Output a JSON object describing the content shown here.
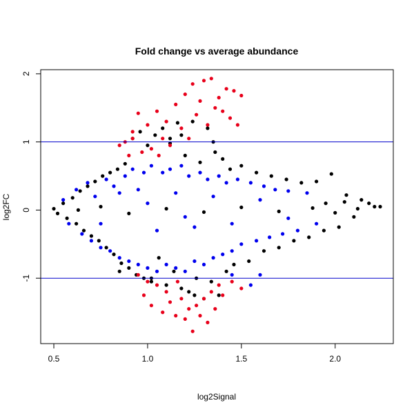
{
  "chart_data": {
    "type": "scatter",
    "title": "Fold change vs average abundance",
    "xlabel": "log2Signal",
    "ylabel": "log2FC",
    "xlim": [
      0.43,
      2.31
    ],
    "ylim": [
      -1.96,
      2.06
    ],
    "x_ticks": [
      0.5,
      1.0,
      1.5,
      2.0
    ],
    "x_tick_labels": [
      "0.5",
      "1.0",
      "1.5",
      "2.0"
    ],
    "y_ticks": [
      -1,
      0,
      1,
      2
    ],
    "y_tick_labels": [
      "-1",
      "0",
      "1",
      "2"
    ],
    "grid": false,
    "reference_lines": [
      {
        "y": 1,
        "color": "#0000cc"
      },
      {
        "y": -1,
        "color": "#0000cc"
      }
    ],
    "series": [
      {
        "color": "#000000",
        "points": [
          [
            0.5,
            0.02
          ],
          [
            0.52,
            -0.05
          ],
          [
            0.55,
            0.1
          ],
          [
            0.57,
            -0.12
          ],
          [
            0.6,
            0.18
          ],
          [
            0.62,
            -0.2
          ],
          [
            0.64,
            0.28
          ],
          [
            0.66,
            -0.3
          ],
          [
            0.68,
            0.35
          ],
          [
            0.7,
            -0.38
          ],
          [
            0.72,
            0.42
          ],
          [
            0.74,
            -0.45
          ],
          [
            0.76,
            0.5
          ],
          [
            0.78,
            -0.55
          ],
          [
            0.8,
            0.55
          ],
          [
            0.82,
            -0.65
          ],
          [
            0.84,
            0.6
          ],
          [
            0.86,
            -0.78
          ],
          [
            0.88,
            0.68
          ],
          [
            0.9,
            -0.85
          ],
          [
            0.92,
            1.05
          ],
          [
            0.94,
            -0.95
          ],
          [
            0.96,
            1.15
          ],
          [
            0.98,
            -1.0
          ],
          [
            1.0,
            0.95
          ],
          [
            1.02,
            -1.05
          ],
          [
            1.04,
            1.1
          ],
          [
            1.06,
            -0.7
          ],
          [
            1.08,
            1.2
          ],
          [
            1.1,
            -1.1
          ],
          [
            1.12,
            1.05
          ],
          [
            1.14,
            -0.9
          ],
          [
            1.16,
            1.28
          ],
          [
            1.18,
            -1.15
          ],
          [
            1.2,
            0.8
          ],
          [
            1.22,
            -1.2
          ],
          [
            1.24,
            1.3
          ],
          [
            1.26,
            -1.0
          ],
          [
            1.28,
            0.7
          ],
          [
            1.3,
            -1.3
          ],
          [
            1.32,
            1.2
          ],
          [
            1.34,
            -1.05
          ],
          [
            1.36,
            0.85
          ],
          [
            1.38,
            -1.25
          ],
          [
            1.4,
            0.75
          ],
          [
            1.42,
            -0.9
          ],
          [
            1.44,
            0.6
          ],
          [
            1.46,
            -0.8
          ],
          [
            1.5,
            0.65
          ],
          [
            1.54,
            -0.75
          ],
          [
            1.58,
            0.55
          ],
          [
            1.62,
            -0.6
          ],
          [
            1.66,
            0.5
          ],
          [
            1.7,
            -0.55
          ],
          [
            1.74,
            0.45
          ],
          [
            1.78,
            -0.45
          ],
          [
            1.82,
            0.4
          ],
          [
            1.86,
            -0.4
          ],
          [
            1.9,
            0.42
          ],
          [
            1.94,
            -0.3
          ],
          [
            1.98,
            0.53
          ],
          [
            2.02,
            -0.25
          ],
          [
            2.06,
            0.22
          ],
          [
            2.1,
            -0.1
          ],
          [
            2.14,
            0.15
          ],
          [
            2.18,
            0.1
          ],
          [
            2.21,
            0.05
          ],
          [
            2.24,
            0.05
          ],
          [
            2.05,
            0.12
          ],
          [
            1.95,
            0.1
          ],
          [
            0.63,
            0.0
          ],
          [
            0.75,
            0.05
          ],
          [
            0.9,
            -0.05
          ],
          [
            1.1,
            0.02
          ],
          [
            1.3,
            -0.03
          ],
          [
            1.5,
            0.04
          ],
          [
            1.7,
            -0.02
          ],
          [
            1.88,
            0.03
          ],
          [
            2.0,
            -0.04
          ],
          [
            2.12,
            0.02
          ],
          [
            1.18,
            1.1
          ],
          [
            1.12,
            0.98
          ],
          [
            1.02,
            -1.0
          ],
          [
            0.85,
            -0.9
          ],
          [
            1.25,
            -1.25
          ],
          [
            1.35,
            1.0
          ]
        ]
      },
      {
        "color": "#0000ee",
        "points": [
          [
            0.55,
            0.15
          ],
          [
            0.58,
            -0.2
          ],
          [
            0.62,
            0.3
          ],
          [
            0.65,
            -0.35
          ],
          [
            0.68,
            0.4
          ],
          [
            0.7,
            -0.45
          ],
          [
            0.72,
            0.2
          ],
          [
            0.75,
            -0.55
          ],
          [
            0.78,
            0.45
          ],
          [
            0.8,
            -0.6
          ],
          [
            0.82,
            0.35
          ],
          [
            0.85,
            -0.7
          ],
          [
            0.88,
            0.5
          ],
          [
            0.9,
            -0.75
          ],
          [
            0.92,
            0.6
          ],
          [
            0.95,
            -0.8
          ],
          [
            0.98,
            0.55
          ],
          [
            1.0,
            -0.85
          ],
          [
            1.02,
            0.65
          ],
          [
            1.05,
            -0.9
          ],
          [
            1.08,
            0.55
          ],
          [
            1.1,
            -0.8
          ],
          [
            1.12,
            0.6
          ],
          [
            1.15,
            -0.85
          ],
          [
            1.18,
            0.65
          ],
          [
            1.2,
            -0.9
          ],
          [
            1.22,
            0.5
          ],
          [
            1.25,
            -0.75
          ],
          [
            1.28,
            0.55
          ],
          [
            1.3,
            -0.8
          ],
          [
            1.32,
            0.45
          ],
          [
            1.35,
            -0.7
          ],
          [
            1.38,
            0.5
          ],
          [
            1.4,
            -0.65
          ],
          [
            1.42,
            0.4
          ],
          [
            1.45,
            -0.6
          ],
          [
            1.48,
            0.45
          ],
          [
            1.5,
            -0.5
          ],
          [
            1.55,
            0.4
          ],
          [
            1.58,
            -0.45
          ],
          [
            1.62,
            0.35
          ],
          [
            1.65,
            -0.4
          ],
          [
            1.68,
            0.3
          ],
          [
            1.72,
            -0.35
          ],
          [
            1.75,
            0.28
          ],
          [
            1.8,
            -0.3
          ],
          [
            1.85,
            0.25
          ],
          [
            1.9,
            -0.2
          ],
          [
            1.55,
            -1.1
          ],
          [
            1.45,
            -0.95
          ],
          [
            1.6,
            -0.95
          ],
          [
            0.95,
            0.3
          ],
          [
            1.05,
            -0.3
          ],
          [
            1.15,
            0.25
          ],
          [
            1.25,
            -0.25
          ],
          [
            1.35,
            0.2
          ],
          [
            1.45,
            -0.2
          ],
          [
            1.6,
            0.15
          ],
          [
            1.75,
            -0.12
          ],
          [
            0.85,
            0.25
          ],
          [
            0.75,
            -0.2
          ],
          [
            1.0,
            0.1
          ],
          [
            1.2,
            -0.1
          ]
        ]
      },
      {
        "color": "#e8001a",
        "points": [
          [
            0.85,
            0.95
          ],
          [
            0.88,
            1.0
          ],
          [
            0.9,
            0.8
          ],
          [
            0.92,
            1.15
          ],
          [
            0.95,
            1.42
          ],
          [
            0.97,
            0.85
          ],
          [
            1.0,
            1.25
          ],
          [
            1.02,
            0.9
          ],
          [
            1.05,
            1.45
          ],
          [
            1.08,
            1.05
          ],
          [
            1.1,
            1.3
          ],
          [
            1.12,
            0.95
          ],
          [
            1.15,
            1.55
          ],
          [
            1.18,
            1.2
          ],
          [
            1.2,
            1.7
          ],
          [
            1.22,
            1.05
          ],
          [
            1.24,
            1.85
          ],
          [
            1.26,
            1.4
          ],
          [
            1.28,
            1.6
          ],
          [
            1.3,
            1.9
          ],
          [
            1.32,
            1.25
          ],
          [
            1.34,
            1.93
          ],
          [
            1.36,
            1.5
          ],
          [
            1.38,
            1.65
          ],
          [
            1.4,
            1.45
          ],
          [
            1.42,
            1.78
          ],
          [
            1.44,
            1.35
          ],
          [
            1.46,
            1.75
          ],
          [
            1.48,
            1.25
          ],
          [
            1.5,
            1.68
          ],
          [
            0.95,
            -0.95
          ],
          [
            0.98,
            -1.25
          ],
          [
            1.0,
            -1.05
          ],
          [
            1.02,
            -1.4
          ],
          [
            1.05,
            -1.1
          ],
          [
            1.08,
            -1.5
          ],
          [
            1.1,
            -1.2
          ],
          [
            1.12,
            -1.35
          ],
          [
            1.15,
            -1.55
          ],
          [
            1.18,
            -1.3
          ],
          [
            1.2,
            -1.6
          ],
          [
            1.22,
            -1.45
          ],
          [
            1.24,
            -1.78
          ],
          [
            1.26,
            -1.4
          ],
          [
            1.28,
            -1.55
          ],
          [
            1.3,
            -1.3
          ],
          [
            1.32,
            -1.65
          ],
          [
            1.34,
            -1.2
          ],
          [
            1.36,
            -1.45
          ],
          [
            1.38,
            -1.1
          ],
          [
            1.4,
            -1.25
          ],
          [
            1.45,
            -1.05
          ],
          [
            1.5,
            -1.15
          ],
          [
            0.92,
            1.05
          ],
          [
            1.06,
            0.8
          ],
          [
            1.16,
            -1.05
          ]
        ]
      }
    ]
  }
}
